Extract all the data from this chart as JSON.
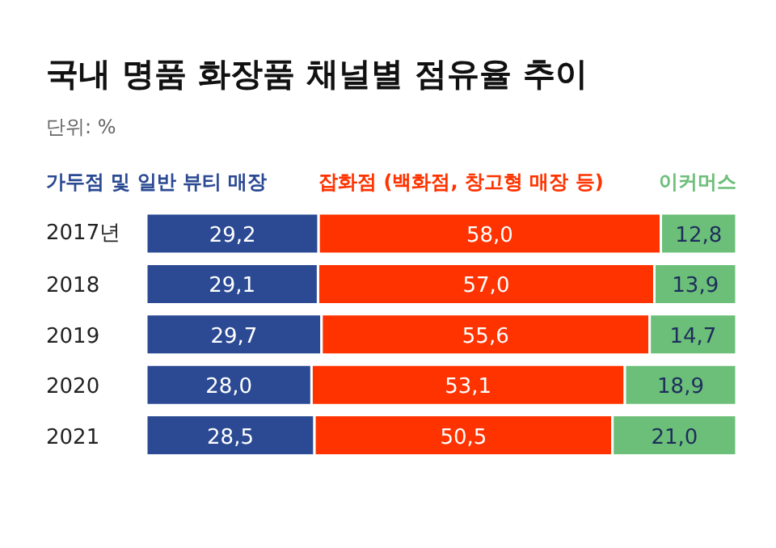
{
  "chart_data": {
    "type": "bar",
    "orientation": "horizontal",
    "stacked": true,
    "title": "국내 명품 화장품 채널별 점유율 추이",
    "subtitle": "단위: %",
    "categories": [
      "2017년",
      "2018",
      "2019",
      "2020",
      "2021"
    ],
    "xlim": [
      0,
      100
    ],
    "legend": "top",
    "data_labels": true,
    "grid": false,
    "series": [
      {
        "name": "가두점 및 일반 뷰티 매장",
        "color": "#2b4a93",
        "values": [
          29.2,
          29.1,
          29.7,
          28.0,
          28.5
        ],
        "value_labels": [
          "29,2",
          "29,1",
          "29,7",
          "28,0",
          "28,5"
        ]
      },
      {
        "name": "잡화점 (백화점, 창고형 매장 등)",
        "color": "#ff3300",
        "values": [
          58.0,
          57.0,
          55.6,
          53.1,
          50.5
        ],
        "value_labels": [
          "58,0",
          "57,0",
          "55,6",
          "53,1",
          "50,5"
        ]
      },
      {
        "name": "이커머스",
        "color": "#6cbf79",
        "values": [
          12.8,
          13.9,
          14.7,
          18.9,
          21.0
        ],
        "value_labels": [
          "12,8",
          "13,9",
          "14,7",
          "18,9",
          "21,0"
        ]
      }
    ]
  }
}
